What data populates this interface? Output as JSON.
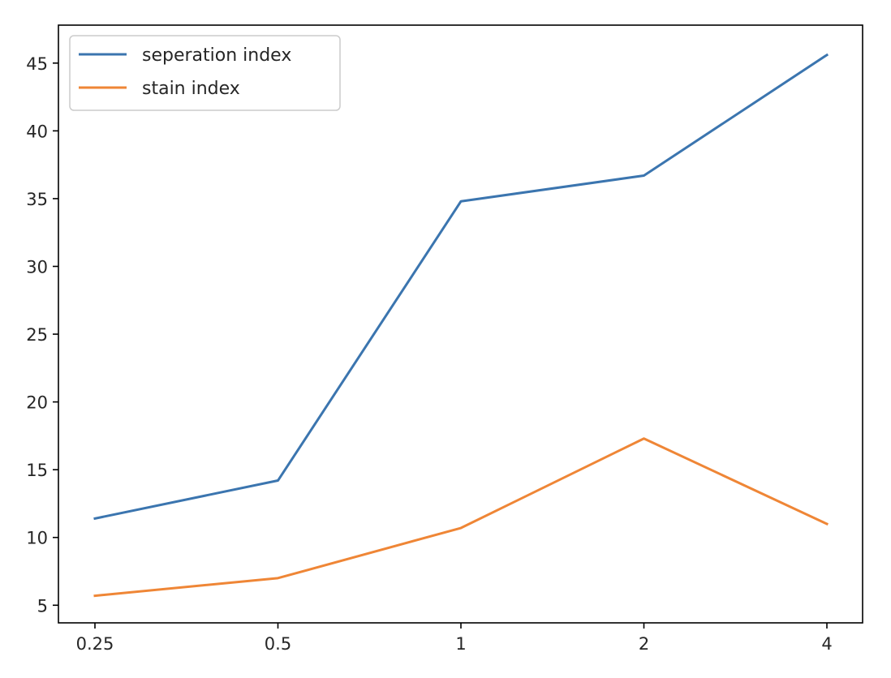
{
  "chart_data": {
    "type": "line",
    "title": "",
    "xlabel": "",
    "ylabel": "",
    "categories": [
      "0.25",
      "0.5",
      "1",
      "2",
      "4"
    ],
    "series": [
      {
        "name": "seperation index",
        "color": "#3b75af",
        "values": [
          11.4,
          14.2,
          34.8,
          36.7,
          45.6
        ]
      },
      {
        "name": "stain index",
        "color": "#ef8636",
        "values": [
          5.7,
          7.0,
          10.7,
          17.3,
          11.0
        ]
      }
    ],
    "ylim": [
      3.7,
      47.8
    ],
    "yticks": [
      5,
      10,
      15,
      20,
      25,
      30,
      35,
      40,
      45
    ],
    "grid": false,
    "legend_position": "top-left"
  }
}
